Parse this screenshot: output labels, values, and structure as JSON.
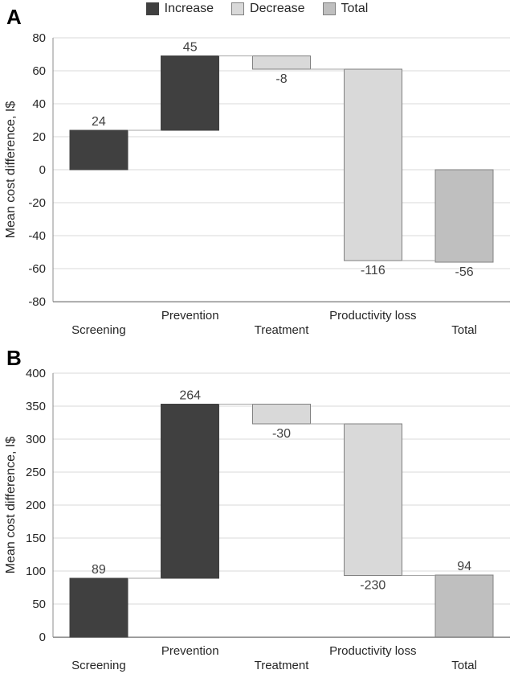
{
  "legend": {
    "items": [
      {
        "label": "Increase",
        "key": "increase"
      },
      {
        "label": "Decrease",
        "key": "decrease"
      },
      {
        "label": "Total",
        "key": "total"
      }
    ]
  },
  "colors": {
    "increase": "#404040",
    "decrease": "#d9d9d9",
    "total": "#bfbfbf",
    "bar_border": "#808080",
    "gridline": "#dadada",
    "axis": "#8c8c8c",
    "connector": "#a6a6a6",
    "tick_text": "#262626",
    "label_text": "#404040"
  },
  "chart_data": [
    {
      "type": "bar",
      "subtype": "waterfall",
      "panel_label": "A",
      "title": "",
      "xlabel": "",
      "ylabel": "Mean cost difference, I$",
      "ylim": [
        -80,
        80
      ],
      "yticks": [
        80,
        60,
        40,
        20,
        0,
        -20,
        -40,
        -60,
        -80
      ],
      "grid": true,
      "legend_position": "top-center",
      "categories": [
        "Screening",
        "Prevention",
        "Treatment",
        "Productivity loss",
        "Total"
      ],
      "values": [
        24,
        45,
        -8,
        -116,
        -56
      ],
      "bar_types": [
        "increase",
        "increase",
        "decrease",
        "decrease",
        "total"
      ],
      "data_labels": [
        "24",
        "45",
        "-8",
        "-116",
        "-56"
      ]
    },
    {
      "type": "bar",
      "subtype": "waterfall",
      "panel_label": "B",
      "title": "",
      "xlabel": "",
      "ylabel": "Mean cost difference, I$",
      "ylim": [
        0,
        400
      ],
      "yticks": [
        400,
        350,
        300,
        250,
        200,
        150,
        100,
        50,
        0
      ],
      "grid": true,
      "legend_position": "top-center",
      "categories": [
        "Screening",
        "Prevention",
        "Treatment",
        "Productivity loss",
        "Total"
      ],
      "values": [
        89,
        264,
        -30,
        -230,
        94
      ],
      "bar_types": [
        "increase",
        "increase",
        "decrease",
        "decrease",
        "total"
      ],
      "data_labels": [
        "89",
        "264",
        "-30",
        "-230",
        "94"
      ]
    }
  ]
}
